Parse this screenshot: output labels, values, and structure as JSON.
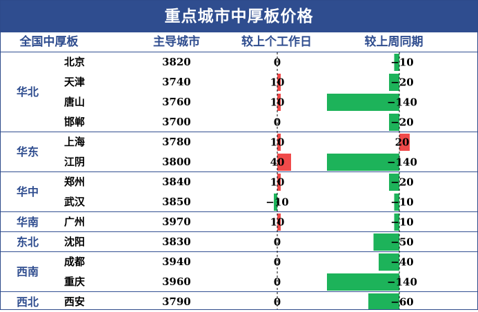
{
  "title": "重点城市中厚板价格",
  "headers": {
    "region": "全国中厚板",
    "city": "主导城市",
    "daily": "较上个工作日",
    "weekly": "较上周同期"
  },
  "colors": {
    "title_bg": "#2f4d8f",
    "increase": "#f04a4a",
    "decrease": "#1db35a",
    "zero_line": "#000000"
  },
  "chart_data": {
    "type": "table",
    "regions": [
      {
        "name": "华北",
        "rows": 4
      },
      {
        "name": "华东",
        "rows": 2
      },
      {
        "name": "华中",
        "rows": 2
      },
      {
        "name": "华南",
        "rows": 1
      },
      {
        "name": "东北",
        "rows": 1
      },
      {
        "name": "西南",
        "rows": 2
      },
      {
        "name": "西北",
        "rows": 1
      }
    ],
    "rows": [
      {
        "city": "北京",
        "price": 3820,
        "daily": 0,
        "weekly": -10
      },
      {
        "city": "天津",
        "price": 3740,
        "daily": 10,
        "weekly": -20
      },
      {
        "city": "唐山",
        "price": 3760,
        "daily": 10,
        "weekly": -140
      },
      {
        "city": "邯郸",
        "price": 3700,
        "daily": 0,
        "weekly": -20
      },
      {
        "city": "上海",
        "price": 3780,
        "daily": 10,
        "weekly": 20
      },
      {
        "city": "江阴",
        "price": 3800,
        "daily": 40,
        "weekly": -140
      },
      {
        "city": "郑州",
        "price": 3840,
        "daily": 10,
        "weekly": -20
      },
      {
        "city": "武汉",
        "price": 3850,
        "daily": -10,
        "weekly": -10
      },
      {
        "city": "广州",
        "price": 3970,
        "daily": 10,
        "weekly": -10
      },
      {
        "city": "沈阳",
        "price": 3830,
        "daily": 0,
        "weekly": -50
      },
      {
        "city": "成都",
        "price": 3940,
        "daily": 0,
        "weekly": -40
      },
      {
        "city": "重庆",
        "price": 3960,
        "daily": 0,
        "weekly": -140
      },
      {
        "city": "西安",
        "price": 3790,
        "daily": 0,
        "weekly": -60
      }
    ]
  }
}
